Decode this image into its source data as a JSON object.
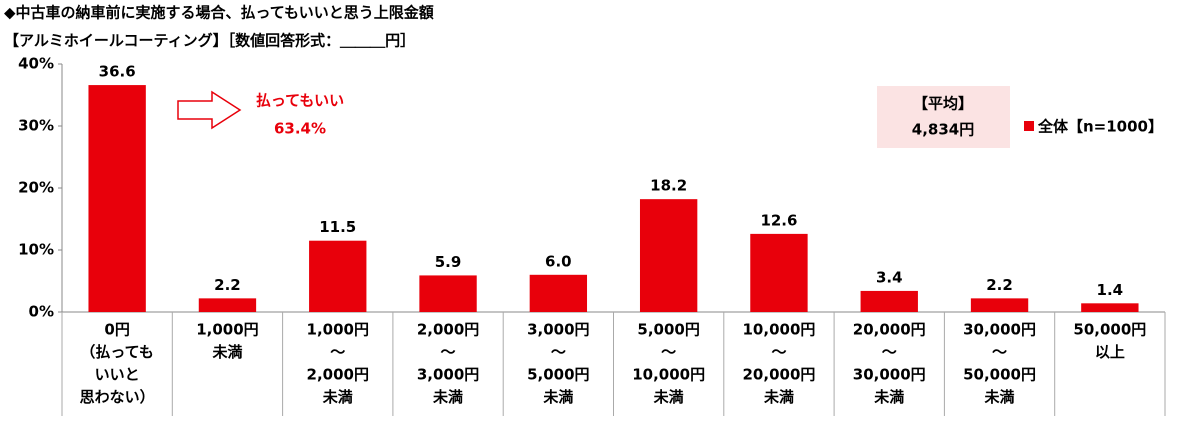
{
  "chart_data": {
    "type": "bar",
    "title": "◆中古車の納車前に実施する場合、払ってもいいと思う上限金額",
    "subtitle": "【アルミホイールコーティング】［数値回答形式：＿＿＿円］",
    "categories": [
      [
        "0円",
        "（払っても",
        "いいと",
        "思わない）"
      ],
      [
        "1,000円",
        "未満"
      ],
      [
        "1,000円",
        "～",
        "2,000円",
        "未満"
      ],
      [
        "2,000円",
        "～",
        "3,000円",
        "未満"
      ],
      [
        "3,000円",
        "～",
        "5,000円",
        "未満"
      ],
      [
        "5,000円",
        "～",
        "10,000円",
        "未満"
      ],
      [
        "10,000円",
        "～",
        "20,000円",
        "未満"
      ],
      [
        "20,000円",
        "～",
        "30,000円",
        "未満"
      ],
      [
        "30,000円",
        "～",
        "50,000円",
        "未満"
      ],
      [
        "50,000円",
        "以上"
      ]
    ],
    "series": [
      {
        "name": "全体【n=1000】",
        "color": "#e8000b",
        "values": [
          36.6,
          2.2,
          11.5,
          5.9,
          6.0,
          18.2,
          12.6,
          3.4,
          2.2,
          1.4
        ],
        "value_labels": [
          "36.6",
          "2.2",
          "11.5",
          "5.9",
          "6.0",
          "18.2",
          "12.6",
          "3.4",
          "2.2",
          "1.4"
        ]
      }
    ],
    "ylim": [
      0,
      40
    ],
    "yticks": [
      {
        "value": 0,
        "label": "0%"
      },
      {
        "value": 10,
        "label": "10%"
      },
      {
        "value": 20,
        "label": "20%"
      },
      {
        "value": 30,
        "label": "30%"
      },
      {
        "value": 40,
        "label": "40%"
      }
    ],
    "annotations": [
      "払ってもいい",
      "63.4%"
    ],
    "average": [
      "【平均】",
      "4,834円"
    ]
  }
}
